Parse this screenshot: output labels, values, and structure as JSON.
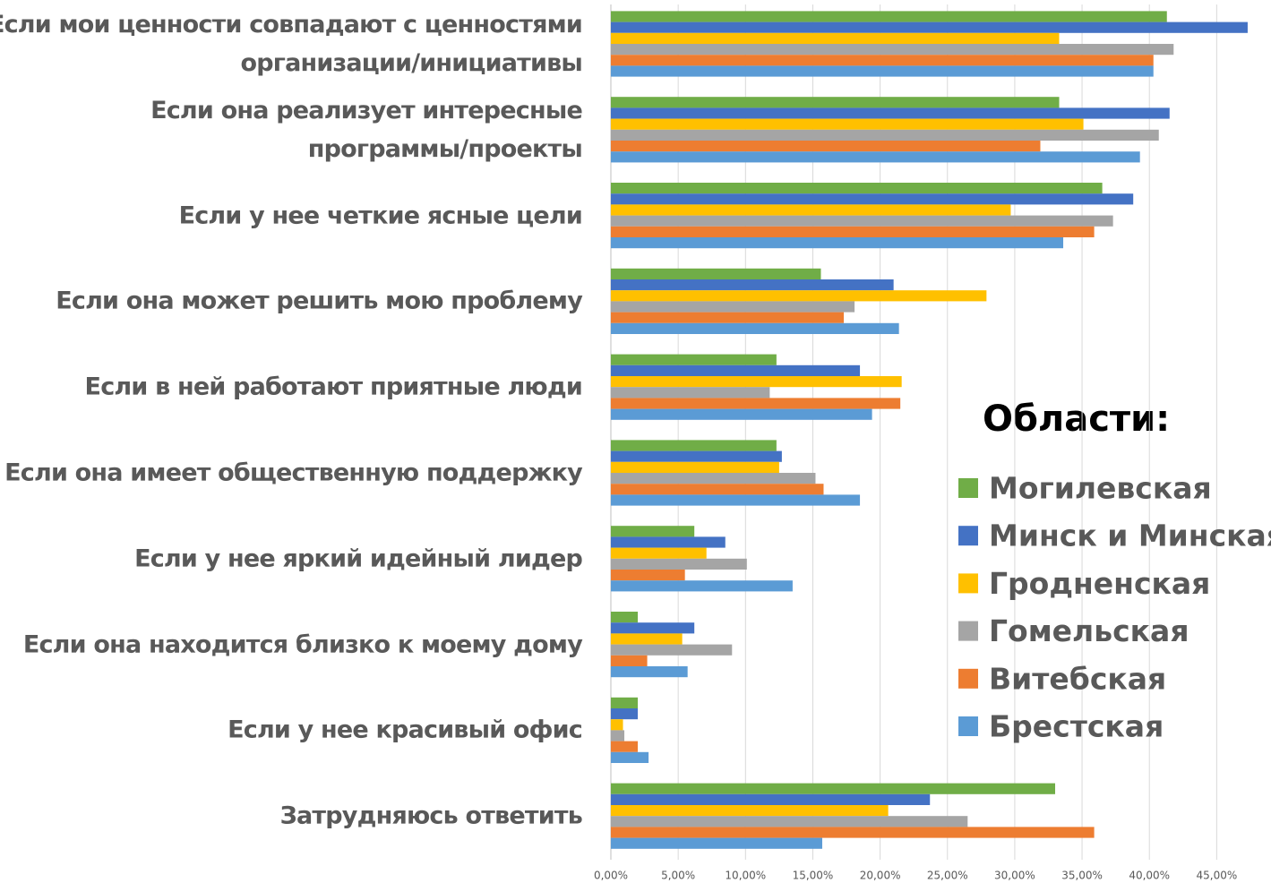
{
  "chart_data": {
    "type": "barh",
    "categories": [
      "Если мои ценности совпадают с ценностями\nорганизации/инициативы",
      "Если она реализует интересные\nпрограммы/проекты",
      "Если у нее четкие ясные цели",
      "Если она может решить мою проблему",
      "Если в ней работают приятные люди",
      "Если она имеет общественную поддержку",
      "Если у нее яркий идейный лидер",
      "Если она находится близко к моему дому",
      "Если у нее красивый офис",
      "Затрудняюсь ответить"
    ],
    "series": [
      {
        "name": "Могилевская",
        "color": "#70ad47",
        "values": [
          41.3,
          33.3,
          36.5,
          15.6,
          12.3,
          12.3,
          6.2,
          2.0,
          2.0,
          33.0
        ]
      },
      {
        "name": "Минск и Минская",
        "color": "#4472c4",
        "values": [
          47.3,
          41.5,
          38.8,
          21.0,
          18.5,
          12.7,
          8.5,
          6.2,
          2.0,
          23.7
        ]
      },
      {
        "name": "Гродненская",
        "color": "#ffc000",
        "values": [
          33.3,
          35.1,
          29.7,
          27.9,
          21.6,
          12.5,
          7.1,
          5.3,
          0.9,
          20.6
        ]
      },
      {
        "name": "Гомельская",
        "color": "#a5a5a5",
        "values": [
          41.8,
          40.7,
          37.3,
          18.1,
          11.8,
          15.2,
          10.1,
          9.0,
          1.0,
          26.5
        ]
      },
      {
        "name": "Витебская",
        "color": "#ed7d31",
        "values": [
          40.3,
          31.9,
          35.9,
          17.3,
          21.5,
          15.8,
          5.5,
          2.7,
          2.0,
          35.9
        ]
      },
      {
        "name": "Брестская",
        "color": "#5b9bd5",
        "values": [
          40.3,
          39.3,
          33.6,
          21.4,
          19.4,
          18.5,
          13.5,
          5.7,
          2.8,
          15.7
        ]
      }
    ],
    "xlim": [
      0,
      49
    ],
    "xticks": [
      {
        "value": 0,
        "label": "0,00%"
      },
      {
        "value": 5,
        "label": "5,00%"
      },
      {
        "value": 10,
        "label": "10,00%"
      },
      {
        "value": 15,
        "label": "15,00%"
      },
      {
        "value": 20,
        "label": "20,00%"
      },
      {
        "value": 25,
        "label": "25,00%"
      },
      {
        "value": 30,
        "label": "30,00%"
      },
      {
        "value": 35,
        "label": "35,00%"
      },
      {
        "value": 40,
        "label": "40,00%"
      },
      {
        "value": 45,
        "label": "45,00%"
      }
    ],
    "grid": true,
    "legend_title": "Области:",
    "legend": "right"
  }
}
